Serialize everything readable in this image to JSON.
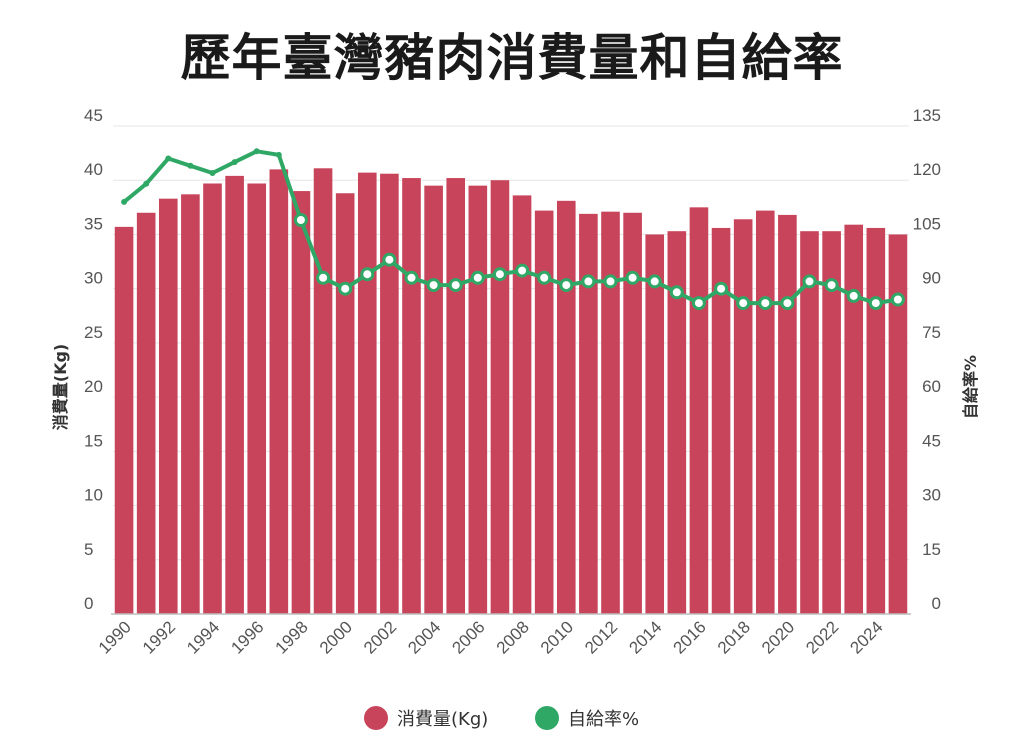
{
  "chart_data": {
    "type": "bar",
    "title": "歷年臺灣豬肉消費量和自給率",
    "x": [
      1990,
      1991,
      1992,
      1993,
      1994,
      1995,
      1996,
      1997,
      1998,
      1999,
      2000,
      2001,
      2002,
      2003,
      2004,
      2005,
      2006,
      2007,
      2008,
      2009,
      2010,
      2011,
      2012,
      2013,
      2014,
      2015,
      2016,
      2017,
      2018,
      2019,
      2020,
      2021,
      2022,
      2023,
      2024,
      2025
    ],
    "xtick_labels": [
      "1990",
      "1992",
      "1994",
      "1996",
      "1998",
      "2000",
      "2002",
      "2004",
      "2006",
      "2008",
      "2010",
      "2012",
      "2014",
      "2016",
      "2018",
      "2020",
      "2022",
      "2024"
    ],
    "ylabel_left": "消費量(Kg)",
    "ylabel_right": "自給率%",
    "ylim_left": [
      0,
      45
    ],
    "ylim_right": [
      0,
      135
    ],
    "yticks_left": [
      "0",
      "5",
      "10",
      "15",
      "20",
      "25",
      "30",
      "35",
      "40",
      "45"
    ],
    "yticks_right": [
      "0",
      "15",
      "30",
      "45",
      "60",
      "75",
      "90",
      "105",
      "120",
      "135"
    ],
    "grid": true,
    "legend_position": "bottom",
    "series": [
      {
        "name": "消費量(Kg)",
        "type": "bar",
        "axis": "left",
        "color": "#c8445a",
        "values": [
          35.7,
          37.0,
          38.3,
          38.7,
          39.7,
          40.4,
          39.7,
          41.0,
          39.0,
          41.1,
          38.8,
          40.7,
          40.6,
          40.2,
          39.5,
          40.2,
          39.5,
          40.0,
          38.6,
          37.2,
          38.1,
          36.9,
          37.1,
          37.0,
          35.0,
          35.3,
          37.5,
          35.6,
          36.4,
          37.2,
          36.8,
          35.3,
          35.3,
          35.9,
          35.6,
          35.0
        ]
      },
      {
        "name": "自給率%",
        "type": "line",
        "axis": "right",
        "color": "#2fa866",
        "values": [
          114,
          119,
          126,
          124,
          122,
          125,
          128,
          127,
          109,
          93,
          90,
          94,
          98,
          93,
          91,
          91,
          93,
          94,
          95,
          93,
          91,
          92,
          92,
          93,
          92,
          89,
          86,
          90,
          86,
          86,
          86,
          92,
          91,
          88,
          86,
          87
        ]
      }
    ]
  },
  "legend": {
    "items": [
      {
        "label": "消費量(Kg)",
        "color": "#c8445a"
      },
      {
        "label": "自給率%",
        "color": "#2fa866"
      }
    ]
  }
}
